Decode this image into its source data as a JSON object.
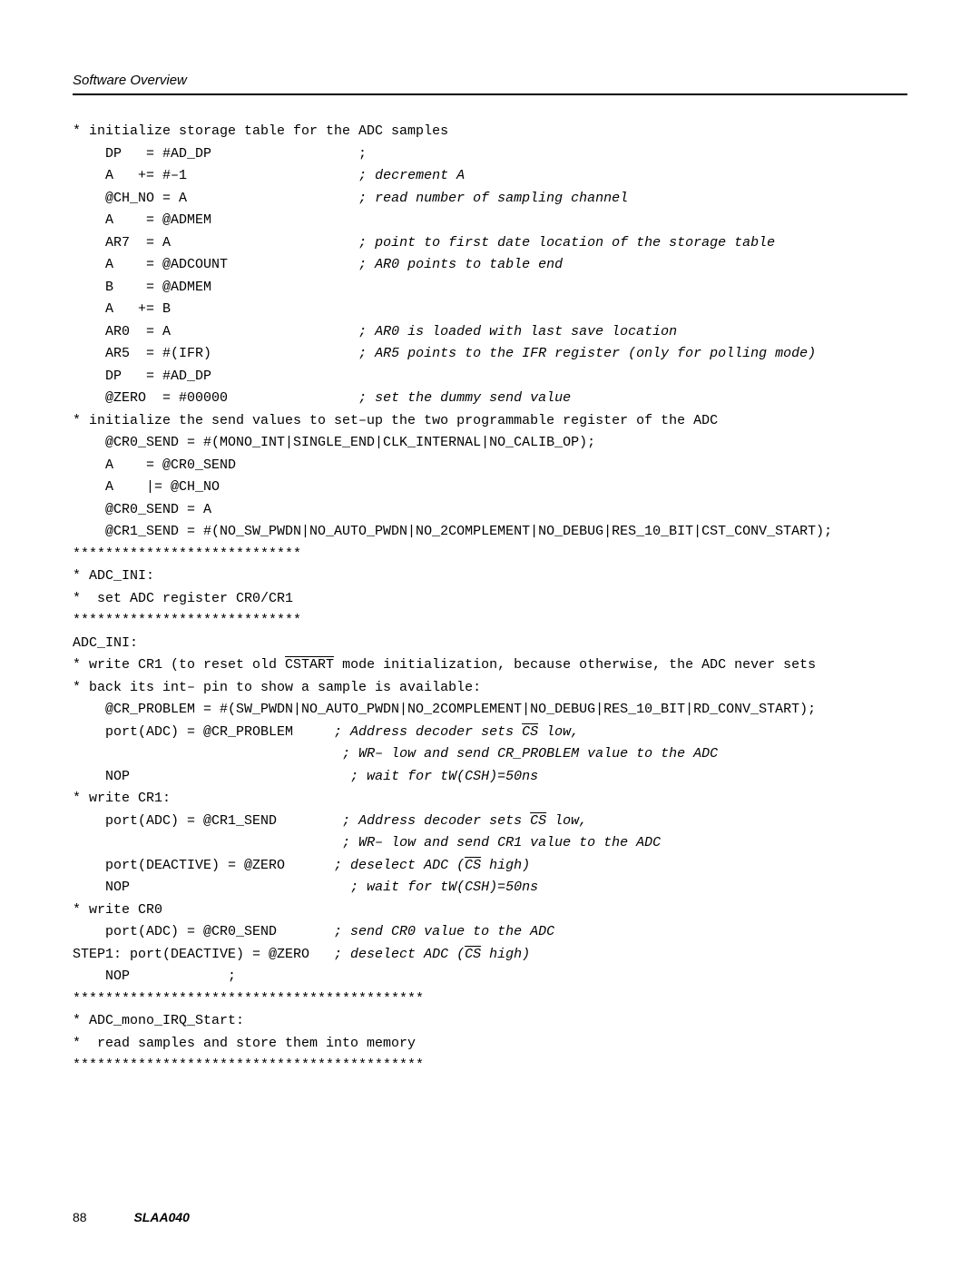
{
  "header": {
    "title": "Software Overview"
  },
  "code": {
    "lines": [
      {
        "text": "* initialize storage table for the ADC samples",
        "indent": 0
      },
      {
        "text": "DP   = #AD_DP                  ;",
        "indent": 4
      },
      {
        "text": "A   += #–1                     ",
        "indent": 4,
        "comment": "; decrement A"
      },
      {
        "text": "@CH_NO = A                     ",
        "indent": 4,
        "comment": "; read number of sampling channel"
      },
      {
        "text": "A    = @ADMEM",
        "indent": 4
      },
      {
        "text": "AR7  = A                       ",
        "indent": 4,
        "comment": "; point to first date location of the storage table"
      },
      {
        "text": "A    = @ADCOUNT                ",
        "indent": 4,
        "comment": "; AR0 points to table end"
      },
      {
        "text": "B    = @ADMEM",
        "indent": 4
      },
      {
        "text": "A   += B",
        "indent": 4
      },
      {
        "text": "AR0  = A                       ",
        "indent": 4,
        "comment": "; AR0 is loaded with last save location"
      },
      {
        "text": "AR5  = #(IFR)                  ",
        "indent": 4,
        "comment": "; AR5 points to the IFR register (only for polling mode)"
      },
      {
        "text": "DP   = #AD_DP",
        "indent": 4
      },
      {
        "text": "@ZERO  = #00000                ",
        "indent": 4,
        "comment": "; set the dummy send value"
      },
      {
        "text": "* initialize the send values to set–up the two programmable register of the ADC",
        "indent": 0
      },
      {
        "text": "@CR0_SEND = #(MONO_INT|SINGLE_END|CLK_INTERNAL|NO_CALIB_OP);",
        "indent": 4
      },
      {
        "text": "A    = @CR0_SEND",
        "indent": 4
      },
      {
        "text": "A    |= @CH_NO",
        "indent": 4
      },
      {
        "text": "@CR0_SEND = A",
        "indent": 4
      },
      {
        "text": "@CR1_SEND = #(NO_SW_PWDN|NO_AUTO_PWDN|NO_2COMPLEMENT|NO_DEBUG|RES_10_BIT|CST_CONV_START);",
        "indent": 4
      },
      {
        "text": "****************************",
        "indent": 0
      },
      {
        "text": "* ADC_INI:",
        "indent": 0
      },
      {
        "text": "*  set ADC register CR0/CR1",
        "indent": 0
      },
      {
        "text": "****************************",
        "indent": 0
      },
      {
        "text": "ADC_INI:",
        "indent": 0
      },
      {
        "text_parts": [
          {
            "t": "* write CR1 (to reset old "
          },
          {
            "t": "CSTART",
            "overline": true
          },
          {
            "t": " mode initialization, because otherwise, the ADC never sets"
          }
        ],
        "indent": 0
      },
      {
        "text": "* back its int– pin to show a sample is available:",
        "indent": 0
      },
      {
        "text": "@CR_PROBLEM = #(SW_PWDN|NO_AUTO_PWDN|NO_2COMPLEMENT|NO_DEBUG|RES_10_BIT|RD_CONV_START);",
        "indent": 4
      },
      {
        "text": "port(ADC) = @CR_PROBLEM     ",
        "indent": 4,
        "comment_parts": [
          {
            "t": "; Address decoder sets "
          },
          {
            "t": "CS",
            "overline": true
          },
          {
            "t": " low,"
          }
        ]
      },
      {
        "text": "                             ",
        "indent": 4,
        "comment": "; WR– low and send CR_PROBLEM value to the ADC"
      },
      {
        "text": "NOP                           ",
        "indent": 4,
        "comment": "; wait for tW(CSH)=50ns"
      },
      {
        "text": "* write CR1:",
        "indent": 0
      },
      {
        "text": "port(ADC) = @CR1_SEND        ",
        "indent": 4,
        "comment_parts": [
          {
            "t": "; Address decoder sets "
          },
          {
            "t": "CS",
            "overline": true
          },
          {
            "t": " low,"
          }
        ]
      },
      {
        "text": "                             ",
        "indent": 4,
        "comment": "; WR– low and send CR1 value to the ADC"
      },
      {
        "text": "port(DEACTIVE) = @ZERO      ",
        "indent": 4,
        "comment_parts": [
          {
            "t": "; deselect ADC ("
          },
          {
            "t": "CS",
            "overline": true
          },
          {
            "t": " high)"
          }
        ]
      },
      {
        "text": "NOP                           ",
        "indent": 4,
        "comment": "; wait for tW(CSH)=50ns"
      },
      {
        "text": "* write CR0",
        "indent": 0
      },
      {
        "text": "port(ADC) = @CR0_SEND       ",
        "indent": 4,
        "comment": "; send CR0 value to the ADC"
      },
      {
        "text_parts": [
          {
            "t": "STEP1: port(DEACTIVE) = @ZERO   "
          }
        ],
        "indent": 0,
        "comment_parts": [
          {
            "t": "; deselect ADC ("
          },
          {
            "t": "CS",
            "overline": true
          },
          {
            "t": " high)"
          }
        ]
      },
      {
        "text": "NOP            ;",
        "indent": 4
      },
      {
        "text": "*******************************************",
        "indent": 0
      },
      {
        "text": "* ADC_mono_IRQ_Start:",
        "indent": 0
      },
      {
        "text": "*  read samples and store them into memory",
        "indent": 0
      },
      {
        "text": "*******************************************",
        "indent": 0
      }
    ]
  },
  "footer": {
    "page": "88",
    "doc_id": "SLAA040"
  },
  "style": {
    "background": "#ffffff",
    "text_color": "#000000",
    "code_fontsize": 15,
    "code_lineheight": 24.5,
    "header_fontsize": 15,
    "rule_thickness": 2.5
  }
}
